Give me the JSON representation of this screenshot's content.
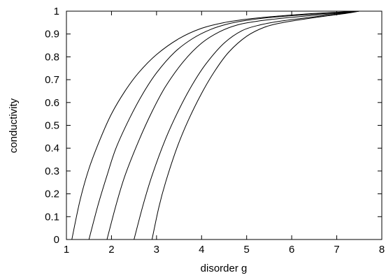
{
  "chart_data": {
    "type": "line",
    "title": "",
    "xlabel": "disorder g",
    "ylabel": "conductivity",
    "xlim": [
      1,
      8
    ],
    "ylim": [
      0,
      1
    ],
    "xticks": [
      "1",
      "2",
      "3",
      "4",
      "5",
      "6",
      "7",
      "8"
    ],
    "yticks": [
      "0",
      "0.1",
      "0.2",
      "0.3",
      "0.4",
      "0.5",
      "0.6",
      "0.7",
      "0.8",
      "0.9",
      "1"
    ],
    "grid": false,
    "legend": "none",
    "line_color": "#000000",
    "series": [
      {
        "x": [
          1.12,
          1.3,
          1.5,
          1.75,
          2.0,
          2.3,
          2.6,
          3.0,
          3.5,
          4.0,
          4.5,
          5.0,
          5.5,
          6.0,
          6.5,
          7.0,
          7.4
        ],
        "y": [
          0.0,
          0.17,
          0.31,
          0.44,
          0.55,
          0.65,
          0.73,
          0.81,
          0.88,
          0.925,
          0.95,
          0.965,
          0.975,
          0.983,
          0.99,
          0.995,
          1.0
        ]
      },
      {
        "x": [
          1.5,
          1.7,
          1.9,
          2.1,
          2.4,
          2.7,
          3.0,
          3.4,
          3.8,
          4.2,
          4.6,
          5.0,
          5.5,
          6.0,
          6.5,
          7.0,
          7.4
        ],
        "y": [
          0.0,
          0.15,
          0.28,
          0.4,
          0.53,
          0.64,
          0.73,
          0.82,
          0.88,
          0.92,
          0.945,
          0.96,
          0.972,
          0.98,
          0.987,
          0.993,
          1.0
        ]
      },
      {
        "x": [
          1.9,
          2.1,
          2.3,
          2.6,
          2.9,
          3.2,
          3.6,
          4.0,
          4.4,
          4.8,
          5.2,
          5.6,
          6.0,
          6.5,
          7.0,
          7.5
        ],
        "y": [
          0.0,
          0.15,
          0.28,
          0.43,
          0.56,
          0.67,
          0.78,
          0.86,
          0.91,
          0.94,
          0.955,
          0.965,
          0.973,
          0.982,
          0.99,
          1.0
        ]
      },
      {
        "x": [
          2.5,
          2.7,
          2.9,
          3.2,
          3.5,
          3.8,
          4.1,
          4.5,
          4.9,
          5.3,
          5.7,
          6.2,
          6.7,
          7.2,
          7.5
        ],
        "y": [
          0.0,
          0.15,
          0.28,
          0.44,
          0.57,
          0.68,
          0.77,
          0.86,
          0.915,
          0.94,
          0.955,
          0.968,
          0.98,
          0.992,
          1.0
        ]
      },
      {
        "x": [
          2.9,
          3.05,
          3.2,
          3.45,
          3.7,
          4.0,
          4.3,
          4.6,
          5.0,
          5.4,
          5.8,
          6.2,
          6.7,
          7.2,
          7.5
        ],
        "y": [
          0.0,
          0.14,
          0.25,
          0.4,
          0.52,
          0.64,
          0.74,
          0.82,
          0.89,
          0.93,
          0.95,
          0.963,
          0.977,
          0.99,
          1.0
        ]
      }
    ]
  }
}
